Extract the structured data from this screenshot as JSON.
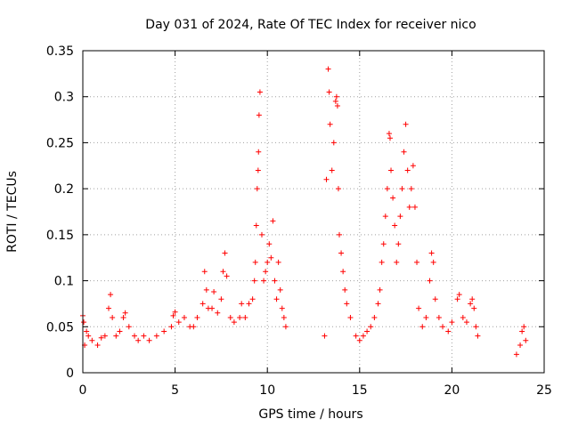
{
  "chart_data": {
    "type": "scatter",
    "title": "Day 031 of 2024, Rate Of TEC Index for receiver nico",
    "xlabel": "GPS time / hours",
    "ylabel": "ROTI / TECUs",
    "xlim": [
      0,
      25
    ],
    "ylim": [
      0,
      0.35
    ],
    "xticks": [
      "0",
      "5",
      "10",
      "15",
      "20",
      "25"
    ],
    "yticks": [
      "0",
      "0.05",
      "0.1",
      "0.15",
      "0.2",
      "0.25",
      "0.3",
      "0.35"
    ],
    "grid": true,
    "marker": "+",
    "color": "#ff0000",
    "series": [
      {
        "points": [
          [
            0.0,
            0.062
          ],
          [
            0.05,
            0.055
          ],
          [
            0.1,
            0.03
          ],
          [
            0.2,
            0.045
          ],
          [
            0.3,
            0.04
          ],
          [
            0.5,
            0.035
          ],
          [
            0.8,
            0.03
          ],
          [
            1.0,
            0.038
          ],
          [
            1.2,
            0.04
          ],
          [
            1.4,
            0.07
          ],
          [
            1.5,
            0.085
          ],
          [
            1.6,
            0.06
          ],
          [
            1.8,
            0.04
          ],
          [
            2.0,
            0.045
          ],
          [
            2.2,
            0.06
          ],
          [
            2.3,
            0.065
          ],
          [
            2.5,
            0.05
          ],
          [
            2.8,
            0.04
          ],
          [
            3.0,
            0.035
          ],
          [
            3.3,
            0.04
          ],
          [
            3.6,
            0.035
          ],
          [
            4.0,
            0.04
          ],
          [
            4.4,
            0.045
          ],
          [
            4.8,
            0.05
          ],
          [
            4.9,
            0.062
          ],
          [
            5.0,
            0.066
          ],
          [
            5.2,
            0.055
          ],
          [
            5.5,
            0.06
          ],
          [
            5.8,
            0.05
          ],
          [
            6.0,
            0.05
          ],
          [
            6.2,
            0.06
          ],
          [
            6.5,
            0.075
          ],
          [
            6.6,
            0.11
          ],
          [
            6.7,
            0.09
          ],
          [
            6.8,
            0.07
          ],
          [
            7.0,
            0.07
          ],
          [
            7.1,
            0.088
          ],
          [
            7.3,
            0.065
          ],
          [
            7.5,
            0.08
          ],
          [
            7.6,
            0.11
          ],
          [
            7.7,
            0.13
          ],
          [
            7.8,
            0.105
          ],
          [
            8.0,
            0.06
          ],
          [
            8.2,
            0.055
          ],
          [
            8.5,
            0.06
          ],
          [
            8.6,
            0.075
          ],
          [
            8.8,
            0.06
          ],
          [
            9.0,
            0.075
          ],
          [
            9.2,
            0.08
          ],
          [
            9.3,
            0.1
          ],
          [
            9.35,
            0.12
          ],
          [
            9.4,
            0.16
          ],
          [
            9.45,
            0.2
          ],
          [
            9.5,
            0.22
          ],
          [
            9.52,
            0.24
          ],
          [
            9.55,
            0.28
          ],
          [
            9.6,
            0.305
          ],
          [
            9.7,
            0.15
          ],
          [
            9.8,
            0.1
          ],
          [
            9.9,
            0.11
          ],
          [
            10.0,
            0.12
          ],
          [
            10.1,
            0.14
          ],
          [
            10.2,
            0.125
          ],
          [
            10.3,
            0.165
          ],
          [
            10.4,
            0.1
          ],
          [
            10.5,
            0.08
          ],
          [
            10.6,
            0.12
          ],
          [
            10.7,
            0.09
          ],
          [
            10.8,
            0.07
          ],
          [
            10.9,
            0.06
          ],
          [
            11.0,
            0.05
          ],
          [
            13.1,
            0.04
          ],
          [
            13.2,
            0.21
          ],
          [
            13.3,
            0.33
          ],
          [
            13.35,
            0.305
          ],
          [
            13.4,
            0.27
          ],
          [
            13.5,
            0.22
          ],
          [
            13.6,
            0.25
          ],
          [
            13.7,
            0.295
          ],
          [
            13.75,
            0.3
          ],
          [
            13.8,
            0.29
          ],
          [
            13.85,
            0.2
          ],
          [
            13.9,
            0.15
          ],
          [
            14.0,
            0.13
          ],
          [
            14.1,
            0.11
          ],
          [
            14.2,
            0.09
          ],
          [
            14.3,
            0.075
          ],
          [
            14.5,
            0.06
          ],
          [
            14.8,
            0.04
          ],
          [
            15.0,
            0.035
          ],
          [
            15.2,
            0.04
          ],
          [
            15.4,
            0.045
          ],
          [
            15.6,
            0.05
          ],
          [
            15.8,
            0.06
          ],
          [
            16.0,
            0.075
          ],
          [
            16.1,
            0.09
          ],
          [
            16.2,
            0.12
          ],
          [
            16.3,
            0.14
          ],
          [
            16.4,
            0.17
          ],
          [
            16.5,
            0.2
          ],
          [
            16.6,
            0.26
          ],
          [
            16.65,
            0.255
          ],
          [
            16.7,
            0.22
          ],
          [
            16.8,
            0.19
          ],
          [
            16.9,
            0.16
          ],
          [
            17.0,
            0.12
          ],
          [
            17.1,
            0.14
          ],
          [
            17.2,
            0.17
          ],
          [
            17.3,
            0.2
          ],
          [
            17.4,
            0.24
          ],
          [
            17.5,
            0.27
          ],
          [
            17.6,
            0.22
          ],
          [
            17.7,
            0.18
          ],
          [
            17.8,
            0.2
          ],
          [
            17.9,
            0.225
          ],
          [
            18.0,
            0.18
          ],
          [
            18.1,
            0.12
          ],
          [
            18.2,
            0.07
          ],
          [
            18.4,
            0.05
          ],
          [
            18.6,
            0.06
          ],
          [
            18.8,
            0.1
          ],
          [
            18.9,
            0.13
          ],
          [
            19.0,
            0.12
          ],
          [
            19.1,
            0.08
          ],
          [
            19.3,
            0.06
          ],
          [
            19.5,
            0.05
          ],
          [
            19.8,
            0.045
          ],
          [
            20.0,
            0.055
          ],
          [
            20.3,
            0.08
          ],
          [
            20.4,
            0.085
          ],
          [
            20.6,
            0.06
          ],
          [
            20.8,
            0.055
          ],
          [
            21.0,
            0.075
          ],
          [
            21.1,
            0.08
          ],
          [
            21.2,
            0.07
          ],
          [
            21.3,
            0.05
          ],
          [
            21.4,
            0.04
          ],
          [
            23.5,
            0.02
          ],
          [
            23.7,
            0.03
          ],
          [
            23.8,
            0.045
          ],
          [
            23.9,
            0.05
          ],
          [
            24.0,
            0.035
          ]
        ]
      }
    ]
  }
}
